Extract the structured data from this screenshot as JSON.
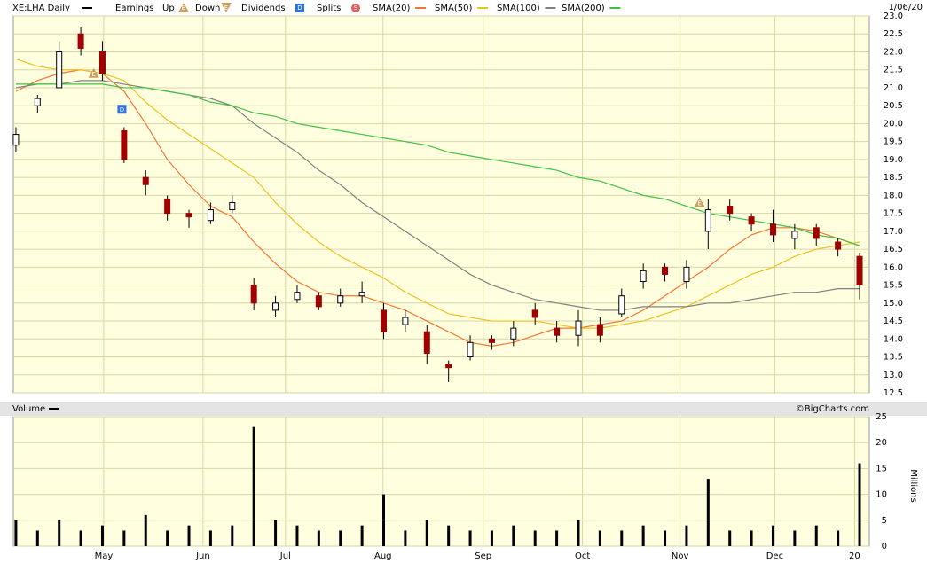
{
  "chart_data": {
    "type": "candlestick",
    "title": "XE:LHA Daily",
    "title_color": "#000000",
    "date": "1/06/20",
    "credit": "©BigCharts.com",
    "legend": [
      {
        "name": "Earnings"
      },
      {
        "name": "Up",
        "icon": "E",
        "color": "#c8a060"
      },
      {
        "name": "Down",
        "icon": "E",
        "color": "#c8a060"
      },
      {
        "name": "Dividends",
        "icon": "D",
        "color": "#3070e0"
      },
      {
        "name": "Splits",
        "icon": "S",
        "color": "#e06060"
      }
    ],
    "up_color": "#ffffff",
    "down_color": "#a00000",
    "open": [
      19.4,
      20.5,
      21.0,
      22.5,
      22.0,
      19.8,
      18.5,
      17.9,
      17.5,
      17.3,
      17.6,
      15.5,
      14.8,
      15.1,
      15.2,
      15.0,
      15.2,
      14.8,
      14.4,
      14.2,
      13.3,
      13.5,
      14.0,
      14.0,
      14.8,
      14.3,
      14.1,
      14.4,
      14.7,
      15.6,
      16.0,
      15.6,
      17.0,
      17.7,
      17.4,
      17.2,
      16.8,
      17.1,
      16.7,
      16.3
    ],
    "high": [
      19.9,
      20.8,
      22.3,
      22.7,
      22.3,
      19.9,
      18.7,
      18.0,
      17.6,
      17.8,
      18.0,
      15.7,
      15.2,
      15.5,
      15.3,
      15.4,
      15.6,
      15.0,
      14.8,
      14.4,
      13.4,
      14.1,
      14.1,
      14.5,
      15.0,
      14.5,
      14.8,
      14.6,
      15.4,
      16.1,
      16.1,
      16.2,
      17.9,
      17.9,
      17.5,
      17.6,
      17.2,
      17.2,
      16.8,
      16.4
    ],
    "low": [
      19.2,
      20.3,
      21.0,
      21.9,
      21.2,
      18.9,
      18.0,
      17.3,
      17.1,
      17.2,
      17.5,
      14.8,
      14.6,
      15.0,
      14.8,
      14.9,
      15.0,
      14.0,
      14.2,
      13.3,
      12.8,
      13.4,
      13.7,
      13.8,
      14.4,
      13.9,
      13.8,
      13.9,
      14.6,
      15.4,
      15.6,
      15.4,
      16.5,
      17.3,
      17.0,
      16.7,
      16.5,
      16.6,
      16.3,
      15.1
    ],
    "close": [
      19.7,
      20.7,
      22.0,
      22.1,
      21.4,
      19.0,
      18.3,
      17.5,
      17.4,
      17.6,
      17.8,
      15.0,
      15.0,
      15.3,
      14.9,
      15.2,
      15.3,
      14.2,
      14.6,
      13.6,
      13.2,
      13.9,
      13.9,
      14.3,
      14.6,
      14.1,
      14.5,
      14.1,
      15.2,
      15.9,
      15.8,
      16.0,
      17.6,
      17.5,
      17.2,
      16.9,
      17.0,
      16.8,
      16.5,
      15.5
    ],
    "series": [
      {
        "name": "SMA(20)",
        "color": "#f07830",
        "values": [
          20.9,
          21.2,
          21.4,
          21.5,
          21.4,
          20.9,
          20.0,
          19.0,
          18.3,
          17.7,
          17.4,
          16.7,
          16.1,
          15.6,
          15.3,
          15.2,
          15.2,
          15.0,
          14.8,
          14.5,
          14.2,
          13.9,
          13.8,
          13.9,
          14.1,
          14.3,
          14.3,
          14.4,
          14.5,
          14.8,
          15.2,
          15.6,
          16.0,
          16.5,
          16.9,
          17.1,
          17.1,
          17.0,
          16.8,
          16.6
        ]
      },
      {
        "name": "SMA(50)",
        "color": "#f0c020",
        "values": [
          21.8,
          21.6,
          21.5,
          21.5,
          21.4,
          21.2,
          20.6,
          20.1,
          19.7,
          19.3,
          18.9,
          18.5,
          17.8,
          17.2,
          16.7,
          16.3,
          16.0,
          15.7,
          15.3,
          15.0,
          14.7,
          14.6,
          14.5,
          14.5,
          14.5,
          14.4,
          14.3,
          14.3,
          14.4,
          14.5,
          14.7,
          14.9,
          15.2,
          15.5,
          15.8,
          16.0,
          16.3,
          16.5,
          16.6,
          16.7
        ]
      },
      {
        "name": "SMA(100)",
        "color": "#808080",
        "values": [
          21.0,
          21.1,
          21.1,
          21.2,
          21.2,
          21.1,
          21.0,
          20.9,
          20.8,
          20.7,
          20.5,
          20.0,
          19.6,
          19.2,
          18.7,
          18.3,
          17.8,
          17.4,
          17.0,
          16.6,
          16.2,
          15.8,
          15.5,
          15.3,
          15.1,
          15.0,
          14.9,
          14.8,
          14.8,
          14.9,
          14.9,
          14.9,
          15.0,
          15.0,
          15.1,
          15.2,
          15.3,
          15.3,
          15.4,
          15.4
        ]
      },
      {
        "name": "SMA(200)",
        "color": "#40c040",
        "values": [
          21.1,
          21.1,
          21.1,
          21.1,
          21.1,
          21.0,
          21.0,
          20.9,
          20.8,
          20.6,
          20.5,
          20.3,
          20.2,
          20.0,
          19.9,
          19.8,
          19.7,
          19.6,
          19.5,
          19.4,
          19.2,
          19.1,
          19.0,
          18.9,
          18.8,
          18.7,
          18.5,
          18.4,
          18.2,
          18.0,
          17.9,
          17.7,
          17.5,
          17.4,
          17.3,
          17.2,
          17.1,
          16.9,
          16.8,
          16.6
        ]
      }
    ],
    "events": [
      {
        "x": 3.6,
        "y": 21.4,
        "label": "E",
        "color": "#c8a060"
      },
      {
        "x": 4.9,
        "y": 20.4,
        "label": "D",
        "color": "#3070e0"
      },
      {
        "x": 31.6,
        "y": 17.8,
        "label": "E",
        "color": "#c8a060"
      }
    ],
    "xlim": [
      -0.12,
      39.45
    ],
    "xticks": [
      {
        "value": 4.06,
        "label": "May"
      },
      {
        "value": 8.65,
        "label": "Jun"
      },
      {
        "value": 12.46,
        "label": "Jul"
      },
      {
        "value": 16.97,
        "label": "Aug"
      },
      {
        "value": 21.6,
        "label": "Sep"
      },
      {
        "value": 26.19,
        "label": "Oct"
      },
      {
        "value": 30.7,
        "label": "Nov"
      },
      {
        "value": 35.08,
        "label": "Dec"
      },
      {
        "value": 38.77,
        "label": "20"
      }
    ],
    "ylim": [
      12.5,
      23.0
    ],
    "yticks": [
      12.5,
      {
        "value": 13,
        "label": "13.0"
      },
      13.5,
      {
        "value": 14,
        "label": "14.0"
      },
      14.5,
      {
        "value": 15,
        "label": "15.0"
      },
      15.5,
      {
        "value": 16,
        "label": "16.0"
      },
      16.5,
      {
        "value": 17,
        "label": "17.0"
      },
      17.5,
      {
        "value": 18,
        "label": "18.0"
      },
      18.5,
      {
        "value": 19,
        "label": "19.0"
      },
      19.5,
      {
        "value": 20,
        "label": "20.0"
      },
      20.5,
      {
        "value": 21,
        "label": "21.0"
      },
      21.5,
      {
        "value": 22,
        "label": "22.0"
      },
      22.5,
      {
        "value": 23,
        "label": "23.0"
      }
    ],
    "grid": true,
    "volume": {
      "type": "bar",
      "title": "Volume",
      "ylabel": "Millions",
      "color": "#000000",
      "values": [
        5,
        3,
        5,
        3,
        4,
        3,
        6,
        3,
        4,
        3,
        4,
        23,
        5,
        4,
        3,
        3,
        4,
        10,
        3,
        5,
        4,
        3,
        3,
        4,
        3,
        3,
        5,
        3,
        3,
        4,
        3,
        4,
        13,
        3,
        3,
        4,
        3,
        4,
        3,
        16
      ],
      "ylim": [
        0,
        25
      ],
      "yticks": [
        0,
        5,
        10,
        15,
        20,
        25
      ]
    }
  }
}
